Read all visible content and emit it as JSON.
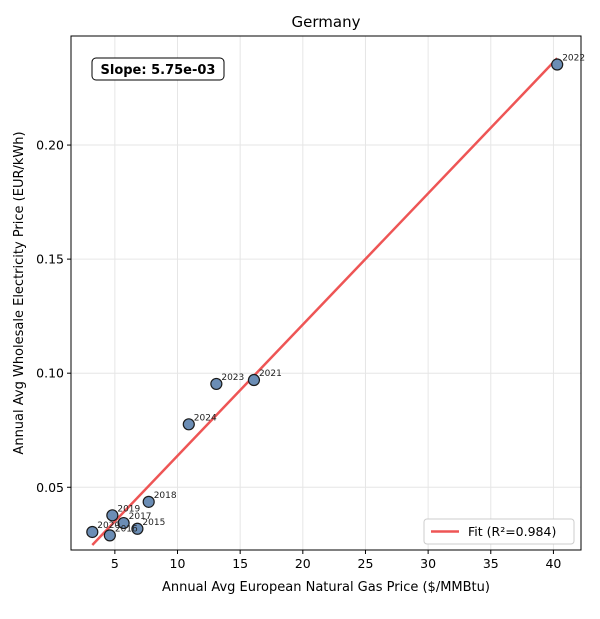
{
  "chart_data": {
    "type": "scatter",
    "title": "Germany",
    "xlabel": "Annual Avg European Natural Gas Price ($/MMBtu)",
    "ylabel": "Annual Avg Wholesale Electricity Price (EUR/kWh)",
    "xlim": [
      1.5,
      42.2
    ],
    "ylim": [
      0.0225,
      0.2478
    ],
    "xticks": [
      5,
      10,
      15,
      20,
      25,
      30,
      35,
      40
    ],
    "yticks": [
      0.05,
      0.1,
      0.15,
      0.2
    ],
    "xtick_labels": [
      "5",
      "10",
      "15",
      "20",
      "25",
      "30",
      "35",
      "40"
    ],
    "ytick_labels": [
      "0.05",
      "0.10",
      "0.15",
      "0.20"
    ],
    "grid": true,
    "points": [
      {
        "label": "2015",
        "x": 6.8,
        "y": 0.0318
      },
      {
        "label": "2016",
        "x": 4.6,
        "y": 0.0289
      },
      {
        "label": "2017",
        "x": 5.7,
        "y": 0.0343
      },
      {
        "label": "2018",
        "x": 7.7,
        "y": 0.0436
      },
      {
        "label": "2019",
        "x": 4.8,
        "y": 0.0377
      },
      {
        "label": "2020",
        "x": 3.2,
        "y": 0.0304
      },
      {
        "label": "2021",
        "x": 16.1,
        "y": 0.097
      },
      {
        "label": "2022",
        "x": 40.3,
        "y": 0.2353
      },
      {
        "label": "2023",
        "x": 13.1,
        "y": 0.0953
      },
      {
        "label": "2024",
        "x": 10.9,
        "y": 0.0776
      }
    ],
    "fit": {
      "x_range": [
        3.2,
        40.3
      ],
      "slope": 0.00575,
      "intercept": 0.0063,
      "color": "#ee5555"
    },
    "point_fill": "#6b8db5",
    "point_edge": "#1a1a1a",
    "legend": {
      "label": "Fit (R²=0.984)",
      "position": "lower-right"
    },
    "annotation": {
      "text": "Slope: 5.75e-03",
      "position": "top-left"
    }
  }
}
